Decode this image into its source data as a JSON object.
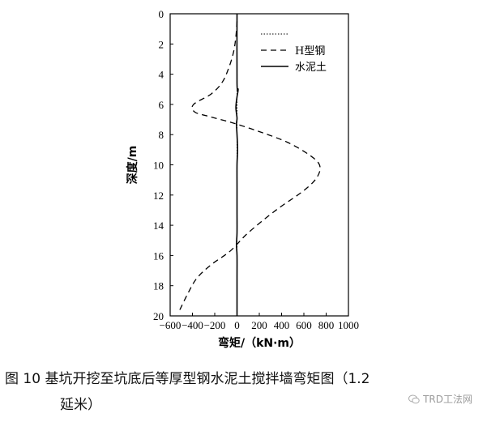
{
  "caption": {
    "line1": "图 10 基坑开挖至坑底后等厚型钢水泥土搅拌墙弯矩图（1.2",
    "line2": "延米）"
  },
  "watermark": "TRD工法网",
  "chart_data": {
    "type": "line",
    "xlabel": "弯矩/（kN·m）",
    "ylabel": "深度/m",
    "xlim": [
      -600,
      1000
    ],
    "ylim": [
      0,
      20
    ],
    "y_inverted": true,
    "x_ticks": [
      -600,
      -400,
      -200,
      0,
      200,
      400,
      600,
      800,
      1000
    ],
    "x_tick_labels": [
      "−600",
      "−400",
      "−200",
      "0",
      "200",
      "400",
      "600",
      "800",
      "1000"
    ],
    "y_ticks": [
      0,
      2,
      4,
      6,
      8,
      10,
      12,
      14,
      16,
      18,
      20
    ],
    "y_tick_labels": [
      "0",
      "2",
      "4",
      "6",
      "8",
      "10",
      "12",
      "14",
      "16",
      "18",
      "20"
    ],
    "grid": false,
    "legend_position": "top-right",
    "legend": [
      {
        "label": "",
        "style": "dotted"
      },
      {
        "label": "H型钢",
        "style": "dashed"
      },
      {
        "label": "水泥土",
        "style": "solid"
      }
    ],
    "series": [
      {
        "name": "",
        "style": "dotted",
        "x": [
          0,
          0
        ],
        "y": [
          0,
          20
        ]
      },
      {
        "name": "H型钢",
        "style": "dashed",
        "points": [
          [
            0,
            0.5
          ],
          [
            -10,
            1.5
          ],
          [
            -30,
            2.5
          ],
          [
            -70,
            3.5
          ],
          [
            -130,
            4.5
          ],
          [
            -230,
            5.3
          ],
          [
            -390,
            6.0
          ],
          [
            -380,
            6.5
          ],
          [
            -250,
            6.8
          ],
          [
            -50,
            7.2
          ],
          [
            200,
            7.8
          ],
          [
            450,
            8.5
          ],
          [
            640,
            9.3
          ],
          [
            740,
            10.0
          ],
          [
            720,
            10.8
          ],
          [
            600,
            11.7
          ],
          [
            350,
            13.0
          ],
          [
            100,
            14.5
          ],
          [
            -60,
            15.7
          ],
          [
            -230,
            16.6
          ],
          [
            -360,
            17.5
          ],
          [
            -440,
            18.5
          ],
          [
            -520,
            19.7
          ]
        ]
      },
      {
        "name": "水泥土",
        "style": "solid",
        "points": [
          [
            0,
            0
          ],
          [
            0,
            4.6
          ],
          [
            10,
            5.0
          ],
          [
            0,
            5.5
          ],
          [
            -10,
            6.2
          ],
          [
            0,
            6.9
          ],
          [
            -5,
            7.3
          ],
          [
            0,
            8.0
          ],
          [
            5,
            9.0
          ],
          [
            0,
            10.0
          ],
          [
            0,
            11.5
          ],
          [
            0,
            13.0
          ],
          [
            0,
            14.5
          ],
          [
            -5,
            15.3
          ],
          [
            0,
            16.0
          ],
          [
            0,
            17.5
          ],
          [
            0,
            18.5
          ],
          [
            0,
            20
          ]
        ]
      }
    ]
  }
}
